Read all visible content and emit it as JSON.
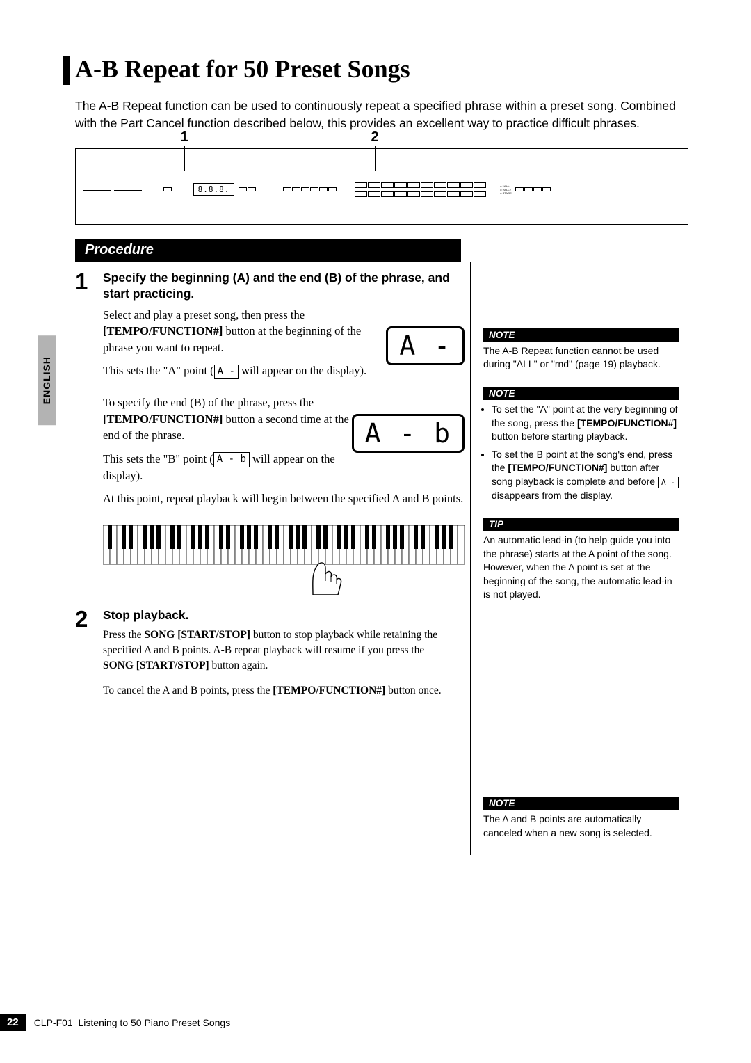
{
  "title": "A-B Repeat for 50 Preset Songs",
  "intro": "The A-B Repeat function can be used to continuously repeat a specified phrase within a preset song. Combined with the Part Cancel function described below, this provides an excellent way to practice difficult phrases.",
  "language_tab": "ENGLISH",
  "callouts": {
    "c1": "1",
    "c2": "2"
  },
  "panel_lcd": "8.8.8.",
  "procedure_header": "Procedure",
  "steps": {
    "s1": {
      "num": "1",
      "title": "Specify the beginning (A) and the end (B) of the phrase, and start practicing.",
      "p1a": "Select and play a preset song, then press the ",
      "p1b": "[TEMPO/FUNCTION#]",
      "p1c": " button at the beginning of the phrase you want to repeat.",
      "p2a": "This sets the \"A\" point (",
      "p2_display": "A -",
      "p2b": " will appear on the display).",
      "display1": "A -",
      "p3a": "To specify the end (B) of the phrase, press the ",
      "p3b": "[TEMPO/FUNCTION#]",
      "p3c": " button a second time at the end of the phrase.",
      "p4a": "This sets the \"B\" point (",
      "p4_display": "A - b",
      "p4b": " will appear on the display).",
      "display2": "A - b",
      "p5": "At this point, repeat playback will begin between the specified A and B points."
    },
    "s2": {
      "num": "2",
      "title": "Stop playback.",
      "p1a": "Press the ",
      "p1b": "SONG [START/STOP]",
      "p1c": " button to stop playback while retaining the specified A and B points. A-B repeat playback will resume if you press the ",
      "p1d": "SONG [START/STOP]",
      "p1e": " button again.",
      "p2a": "To cancel the A and B points, press the ",
      "p2b": "[TEMPO/FUNCTION#]",
      "p2c": " button once."
    }
  },
  "side": {
    "n1_hdr": "NOTE",
    "n1_body": "The A-B Repeat function cannot be used during \"ALL\" or \"rnd\" (page 19) playback.",
    "n2_hdr": "NOTE",
    "n2_li1a": "To set the \"A\" point at the very beginning of the song, press the ",
    "n2_li1b": "[TEMPO/FUNCTION#]",
    "n2_li1c": " button before starting playback.",
    "n2_li2a": "To set the B point at the song's end, press the ",
    "n2_li2b": "[TEMPO/FUNCTION#]",
    "n2_li2c": " button after song playback is complete and before ",
    "n2_li2_display": "A -",
    "n2_li2d": " disappears from the display.",
    "tip_hdr": "TIP",
    "tip_body": "An automatic lead-in (to help guide you into the phrase) starts at the A point of the song. However, when the A point is set at the beginning of the song, the automatic lead-in is not played.",
    "n3_hdr": "NOTE",
    "n3_body": "The A and B points are automatically canceled when a new song is selected."
  },
  "footer": {
    "page": "22",
    "model": "CLP-F01",
    "section": "Listening to 50 Piano Preset Songs"
  },
  "keyboard": {
    "white_keys": 52
  }
}
